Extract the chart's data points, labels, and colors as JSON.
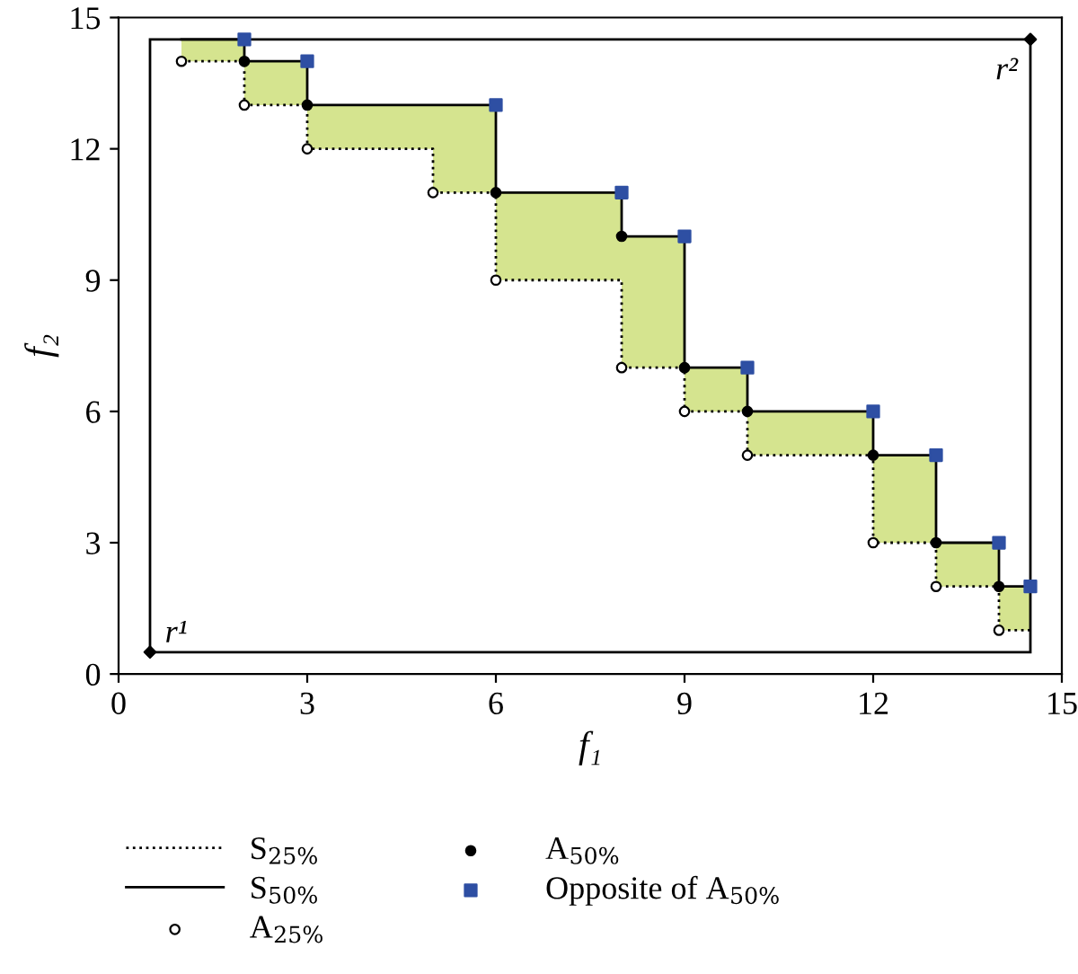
{
  "chart_data": {
    "type": "scatter",
    "xlabel": "f₁",
    "ylabel": "f₂",
    "xlim": [
      0,
      15
    ],
    "ylim": [
      0,
      15
    ],
    "xticks": [
      0,
      3,
      6,
      9,
      12,
      15
    ],
    "yticks": [
      0,
      3,
      6,
      9,
      12,
      15
    ],
    "grid": false,
    "legend": "bottom",
    "series": [
      {
        "type": "step",
        "name": "S$_{25%}$",
        "color": "#000000",
        "line_style": "dotted",
        "marker": "none",
        "x": [
          1,
          2,
          3,
          5,
          6,
          8,
          9,
          10,
          12,
          13,
          14,
          14.5
        ],
        "values": [
          14,
          13,
          12,
          11,
          9,
          7,
          6,
          5,
          3,
          2,
          1,
          1
        ]
      },
      {
        "type": "step",
        "name": "S$_{50%}$",
        "color": "#000000",
        "line_style": "solid",
        "marker": "none",
        "x": [
          1,
          2,
          3,
          5,
          6,
          8,
          9,
          10,
          12,
          13,
          14,
          14.5
        ],
        "values": [
          14.5,
          14,
          13,
          13,
          11,
          10,
          7,
          6,
          5,
          3,
          2,
          2
        ],
        "lower": [
          14,
          13,
          12,
          11,
          9,
          7,
          6,
          5,
          3,
          2,
          1,
          1
        ],
        "upper": [
          14.5,
          14,
          13,
          13,
          11,
          10,
          7,
          6,
          5,
          3,
          2,
          2
        ]
      },
      {
        "name": "A$_{25%}$",
        "color": "#ffffff",
        "marker": "circle",
        "x": [
          1,
          2,
          3,
          5,
          6,
          8,
          9,
          10,
          12,
          13,
          14
        ],
        "values": [
          14,
          13,
          12,
          11,
          9,
          7,
          6,
          5,
          3,
          2,
          1
        ]
      },
      {
        "name": "A$_{50%}$",
        "color": "#000000",
        "marker": "circle",
        "x": [
          2,
          3,
          6,
          8,
          9,
          10,
          12,
          13,
          14
        ],
        "values": [
          14,
          13,
          11,
          10,
          7,
          6,
          5,
          3,
          2
        ]
      },
      {
        "name": "Opposite of A$_{50%}$",
        "color": "#2e4fa3",
        "marker": "square",
        "x": [
          2,
          3,
          6,
          8,
          9,
          10,
          12,
          13,
          14,
          14.5
        ],
        "values": [
          14.5,
          14,
          13,
          11,
          10,
          7,
          6,
          5,
          3,
          2
        ]
      },
      {
        "color": "#000000",
        "marker": "diamond",
        "x": [
          0.5,
          14.5
        ],
        "values": [
          0.5,
          14.5
        ]
      }
    ],
    "annotations": [
      {
        "text": "r¹",
        "x": 0.5,
        "y": 0.5
      },
      {
        "text": "r²",
        "x": 14.5,
        "y": 14.5
      }
    ]
  }
}
